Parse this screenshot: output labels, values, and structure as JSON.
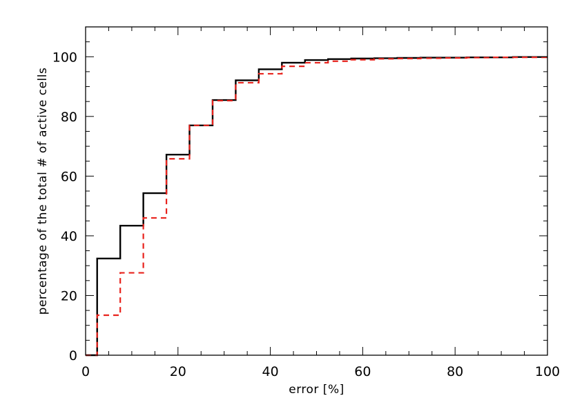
{
  "chart_data": {
    "type": "line",
    "xlabel": "error [%]",
    "ylabel": "percentage of the total # of active cells",
    "xlim": [
      0,
      100
    ],
    "ylim": [
      0,
      110
    ],
    "x_ticks": [
      0,
      20,
      40,
      60,
      80,
      100
    ],
    "y_ticks": [
      0,
      20,
      40,
      60,
      80,
      100
    ],
    "x_tick_labels": [
      "0",
      "20",
      "40",
      "60",
      "80",
      "100"
    ],
    "y_tick_labels": [
      "0",
      "20",
      "40",
      "60",
      "80",
      "100"
    ],
    "minor_x_step": 5,
    "minor_y_step": 5,
    "grid": false,
    "step_style": "histogram",
    "series": [
      {
        "color": "#000000",
        "line_style": "solid",
        "x": [
          0,
          2.5,
          7.5,
          12.5,
          17.5,
          22.5,
          27.5,
          32.5,
          37.5,
          42.5,
          47.5,
          52.5,
          57.5,
          62.5,
          67.5,
          72.5,
          77.5,
          82.5,
          87.5,
          92.5,
          97.5
        ],
        "y": [
          0,
          32.4,
          43.4,
          54.3,
          67.2,
          77.0,
          85.5,
          92.1,
          95.8,
          98.0,
          98.9,
          99.2,
          99.4,
          99.5,
          99.6,
          99.7,
          99.7,
          99.8,
          99.8,
          99.9,
          99.9
        ]
      },
      {
        "color": "#e8221c",
        "line_style": "dashed",
        "x": [
          0,
          2.5,
          7.5,
          12.5,
          17.5,
          22.5,
          27.5,
          32.5,
          37.5,
          42.5,
          47.5,
          52.5,
          57.5,
          62.5,
          67.5,
          72.5,
          77.5,
          82.5,
          87.5,
          92.5,
          97.5
        ],
        "y": [
          0,
          13.4,
          27.6,
          46.0,
          65.8,
          77.0,
          85.3,
          91.3,
          94.3,
          96.8,
          98.0,
          98.5,
          99.0,
          99.3,
          99.4,
          99.5,
          99.6,
          99.7,
          99.8,
          99.8,
          99.8
        ]
      }
    ]
  }
}
